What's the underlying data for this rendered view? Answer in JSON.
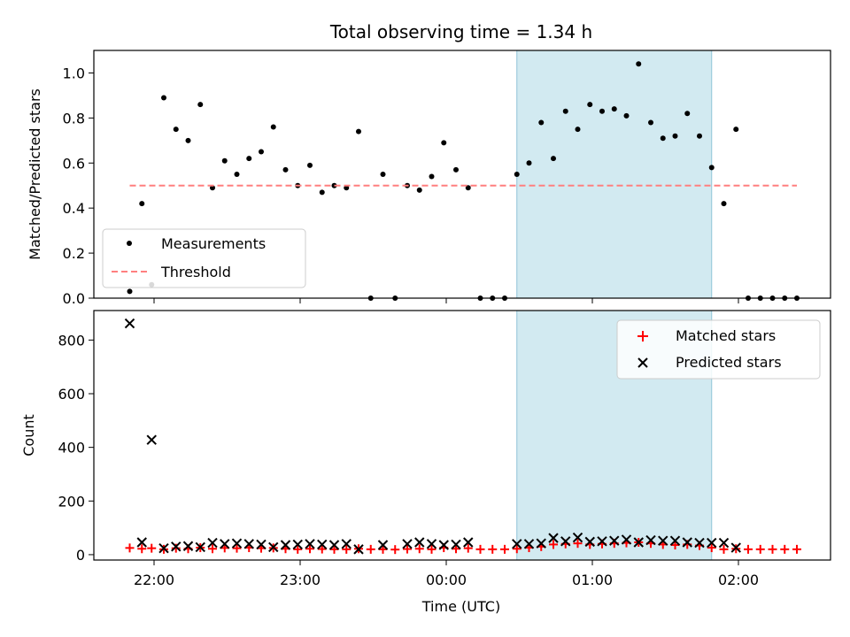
{
  "chart_data": {
    "type": "scatter",
    "title": "Total observing time = 1.34 h",
    "xlabel": "Time (UTC)",
    "x_ticks": [
      "22:00",
      "23:00",
      "00:00",
      "01:00",
      "02:00"
    ],
    "observing_window": [
      "00:29",
      "01:49"
    ],
    "colors": {
      "window": "#add8e6",
      "threshold": "#ff7f7f",
      "matched": "#ff0000",
      "predicted": "#000000",
      "measurement": "#000000"
    },
    "panels": [
      {
        "ylabel": "Matched/Predicted stars",
        "ylim": [
          0,
          1.1
        ],
        "y_ticks": [
          "0.0",
          "0.2",
          "0.4",
          "0.6",
          "0.8",
          "1.0"
        ],
        "legend_position": "lower-left",
        "series": [
          {
            "name": "Measurements",
            "marker": "dot",
            "points": [
              [
                "21:50",
                0.03
              ],
              [
                "21:55",
                0.42
              ],
              [
                "21:59",
                0.06
              ],
              [
                "22:04",
                0.89
              ],
              [
                "22:09",
                0.75
              ],
              [
                "22:14",
                0.7
              ],
              [
                "22:19",
                0.86
              ],
              [
                "22:24",
                0.49
              ],
              [
                "22:29",
                0.61
              ],
              [
                "22:34",
                0.55
              ],
              [
                "22:39",
                0.62
              ],
              [
                "22:44",
                0.65
              ],
              [
                "22:49",
                0.76
              ],
              [
                "22:54",
                0.57
              ],
              [
                "22:59",
                0.5
              ],
              [
                "23:04",
                0.59
              ],
              [
                "23:09",
                0.47
              ],
              [
                "23:14",
                0.5
              ],
              [
                "23:19",
                0.49
              ],
              [
                "23:24",
                0.74
              ],
              [
                "23:29",
                0.0
              ],
              [
                "23:34",
                0.55
              ],
              [
                "23:39",
                0.0
              ],
              [
                "23:44",
                0.5
              ],
              [
                "23:49",
                0.48
              ],
              [
                "23:54",
                0.54
              ],
              [
                "23:59",
                0.69
              ],
              [
                "00:04",
                0.57
              ],
              [
                "00:09",
                0.49
              ],
              [
                "00:14",
                0.0
              ],
              [
                "00:19",
                0.0
              ],
              [
                "00:24",
                0.0
              ],
              [
                "00:29",
                0.55
              ],
              [
                "00:34",
                0.6
              ],
              [
                "00:39",
                0.78
              ],
              [
                "00:44",
                0.62
              ],
              [
                "00:49",
                0.83
              ],
              [
                "00:54",
                0.75
              ],
              [
                "00:59",
                0.86
              ],
              [
                "01:04",
                0.83
              ],
              [
                "01:09",
                0.84
              ],
              [
                "01:14",
                0.81
              ],
              [
                "01:19",
                1.04
              ],
              [
                "01:24",
                0.78
              ],
              [
                "01:29",
                0.71
              ],
              [
                "01:34",
                0.72
              ],
              [
                "01:39",
                0.82
              ],
              [
                "01:44",
                0.72
              ],
              [
                "01:49",
                0.58
              ],
              [
                "01:54",
                0.42
              ],
              [
                "01:59",
                0.75
              ],
              [
                "02:04",
                0.0
              ],
              [
                "02:09",
                0.0
              ],
              [
                "02:14",
                0.0
              ],
              [
                "02:19",
                0.0
              ],
              [
                "02:24",
                0.0
              ]
            ]
          },
          {
            "name": "Threshold",
            "marker": "dashed-line",
            "points": [
              [
                "21:50",
                0.5
              ],
              [
                "02:24",
                0.5
              ]
            ]
          }
        ]
      },
      {
        "ylabel": "Count",
        "ylim": [
          -20,
          910
        ],
        "y_ticks": [
          "0",
          "200",
          "400",
          "600",
          "800"
        ],
        "legend_position": "upper-right",
        "series": [
          {
            "name": "Matched stars",
            "marker": "plus",
            "points": [
              [
                "21:50",
                25
              ],
              [
                "21:55",
                22
              ],
              [
                "21:59",
                24
              ],
              [
                "22:04",
                20
              ],
              [
                "22:09",
                24
              ],
              [
                "22:14",
                22
              ],
              [
                "22:19",
                26
              ],
              [
                "22:24",
                22
              ],
              [
                "22:29",
                25
              ],
              [
                "22:34",
                24
              ],
              [
                "22:39",
                26
              ],
              [
                "22:44",
                24
              ],
              [
                "22:49",
                25
              ],
              [
                "22:54",
                22
              ],
              [
                "22:59",
                20
              ],
              [
                "23:04",
                22
              ],
              [
                "23:09",
                21
              ],
              [
                "23:14",
                20
              ],
              [
                "23:19",
                20
              ],
              [
                "23:24",
                22
              ],
              [
                "23:29",
                20
              ],
              [
                "23:34",
                20
              ],
              [
                "23:39",
                19
              ],
              [
                "23:44",
                21
              ],
              [
                "23:49",
                22
              ],
              [
                "23:54",
                20
              ],
              [
                "23:59",
                26
              ],
              [
                "00:04",
                22
              ],
              [
                "00:09",
                24
              ],
              [
                "00:14",
                20
              ],
              [
                "00:19",
                20
              ],
              [
                "00:24",
                20
              ],
              [
                "00:29",
                22
              ],
              [
                "00:34",
                26
              ],
              [
                "00:39",
                30
              ],
              [
                "00:44",
                38
              ],
              [
                "00:49",
                40
              ],
              [
                "00:54",
                42
              ],
              [
                "00:59",
                38
              ],
              [
                "01:04",
                40
              ],
              [
                "01:09",
                42
              ],
              [
                "01:14",
                44
              ],
              [
                "01:19",
                46
              ],
              [
                "01:24",
                42
              ],
              [
                "01:29",
                38
              ],
              [
                "01:34",
                36
              ],
              [
                "01:39",
                38
              ],
              [
                "01:44",
                34
              ],
              [
                "01:49",
                26
              ],
              [
                "01:54",
                20
              ],
              [
                "01:59",
                22
              ],
              [
                "02:04",
                20
              ],
              [
                "02:09",
                20
              ],
              [
                "02:14",
                20
              ],
              [
                "02:19",
                20
              ],
              [
                "02:24",
                20
              ]
            ]
          },
          {
            "name": "Predicted stars",
            "marker": "x",
            "points": [
              [
                "21:50",
                862
              ],
              [
                "21:55",
                46
              ],
              [
                "21:59",
                428
              ],
              [
                "22:04",
                24
              ],
              [
                "22:09",
                30
              ],
              [
                "22:14",
                32
              ],
              [
                "22:19",
                28
              ],
              [
                "22:24",
                44
              ],
              [
                "22:29",
                40
              ],
              [
                "22:34",
                42
              ],
              [
                "22:39",
                40
              ],
              [
                "22:44",
                38
              ],
              [
                "22:49",
                28
              ],
              [
                "22:54",
                36
              ],
              [
                "22:59",
                38
              ],
              [
                "23:04",
                40
              ],
              [
                "23:09",
                38
              ],
              [
                "23:14",
                36
              ],
              [
                "23:19",
                40
              ],
              [
                "23:24",
                20
              ],
              [
                "23:34",
                36
              ],
              [
                "23:44",
                40
              ],
              [
                "23:49",
                46
              ],
              [
                "23:54",
                40
              ],
              [
                "23:59",
                36
              ],
              [
                "00:04",
                38
              ],
              [
                "00:09",
                46
              ],
              [
                "00:29",
                40
              ],
              [
                "00:34",
                40
              ],
              [
                "00:39",
                42
              ],
              [
                "00:44",
                62
              ],
              [
                "00:49",
                50
              ],
              [
                "00:54",
                64
              ],
              [
                "00:59",
                48
              ],
              [
                "01:04",
                50
              ],
              [
                "01:09",
                52
              ],
              [
                "01:14",
                56
              ],
              [
                "01:19",
                46
              ],
              [
                "01:24",
                54
              ],
              [
                "01:29",
                52
              ],
              [
                "01:34",
                52
              ],
              [
                "01:39",
                46
              ],
              [
                "01:44",
                44
              ],
              [
                "01:49",
                44
              ],
              [
                "01:54",
                44
              ],
              [
                "01:59",
                26
              ]
            ]
          }
        ]
      }
    ]
  }
}
